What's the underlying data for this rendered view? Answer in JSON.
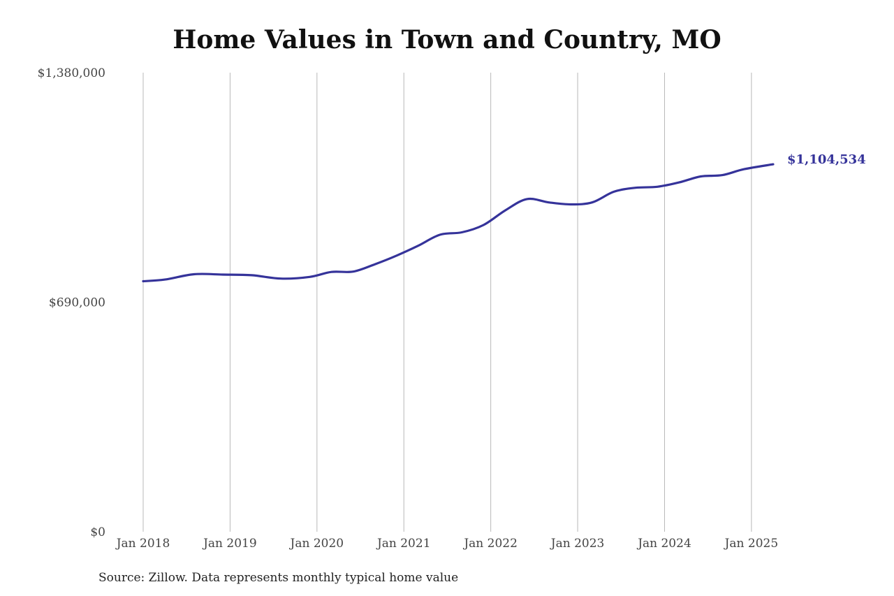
{
  "chart_data": {
    "type": "line",
    "title": "Home Values in Town and Country, MO",
    "xlabel": "",
    "ylabel": "",
    "ylim": [
      0,
      1380000
    ],
    "y_ticks": [
      {
        "value": 0,
        "label": "$0"
      },
      {
        "value": 690000,
        "label": "$690,000"
      },
      {
        "value": 1380000,
        "label": "$1,380,000"
      }
    ],
    "x_range": [
      "2018-01",
      "2025-04"
    ],
    "x_ticks": [
      {
        "date": "2018-01",
        "label": "Jan 2018"
      },
      {
        "date": "2019-01",
        "label": "Jan 2019"
      },
      {
        "date": "2020-01",
        "label": "Jan 2020"
      },
      {
        "date": "2021-01",
        "label": "Jan 2021"
      },
      {
        "date": "2022-01",
        "label": "Jan 2022"
      },
      {
        "date": "2023-01",
        "label": "Jan 2023"
      },
      {
        "date": "2024-01",
        "label": "Jan 2024"
      },
      {
        "date": "2025-01",
        "label": "Jan 2025"
      }
    ],
    "grid": "vertical",
    "series": [
      {
        "color": "#35339a",
        "points": [
          {
            "x": "2018-01",
            "y": 753000
          },
          {
            "x": "2018-04",
            "y": 758000
          },
          {
            "x": "2018-08",
            "y": 774000
          },
          {
            "x": "2018-12",
            "y": 773000
          },
          {
            "x": "2019-04",
            "y": 771000
          },
          {
            "x": "2019-08",
            "y": 761000
          },
          {
            "x": "2019-12",
            "y": 766000
          },
          {
            "x": "2020-03",
            "y": 781000
          },
          {
            "x": "2020-06",
            "y": 782000
          },
          {
            "x": "2020-09",
            "y": 804000
          },
          {
            "x": "2020-12",
            "y": 830000
          },
          {
            "x": "2021-03",
            "y": 860000
          },
          {
            "x": "2021-06",
            "y": 893000
          },
          {
            "x": "2021-09",
            "y": 900000
          },
          {
            "x": "2021-12",
            "y": 922000
          },
          {
            "x": "2022-03",
            "y": 966000
          },
          {
            "x": "2022-06",
            "y": 1000000
          },
          {
            "x": "2022-09",
            "y": 990000
          },
          {
            "x": "2022-12",
            "y": 984000
          },
          {
            "x": "2023-03",
            "y": 990000
          },
          {
            "x": "2023-06",
            "y": 1022000
          },
          {
            "x": "2023-09",
            "y": 1034000
          },
          {
            "x": "2023-12",
            "y": 1037000
          },
          {
            "x": "2024-03",
            "y": 1050000
          },
          {
            "x": "2024-06",
            "y": 1068000
          },
          {
            "x": "2024-09",
            "y": 1072000
          },
          {
            "x": "2024-12",
            "y": 1090000
          },
          {
            "x": "2025-04",
            "y": 1104534
          }
        ],
        "end_label": "$1,104,534"
      }
    ]
  },
  "source_note": "Source: Zillow. Data represents monthly typical home value"
}
